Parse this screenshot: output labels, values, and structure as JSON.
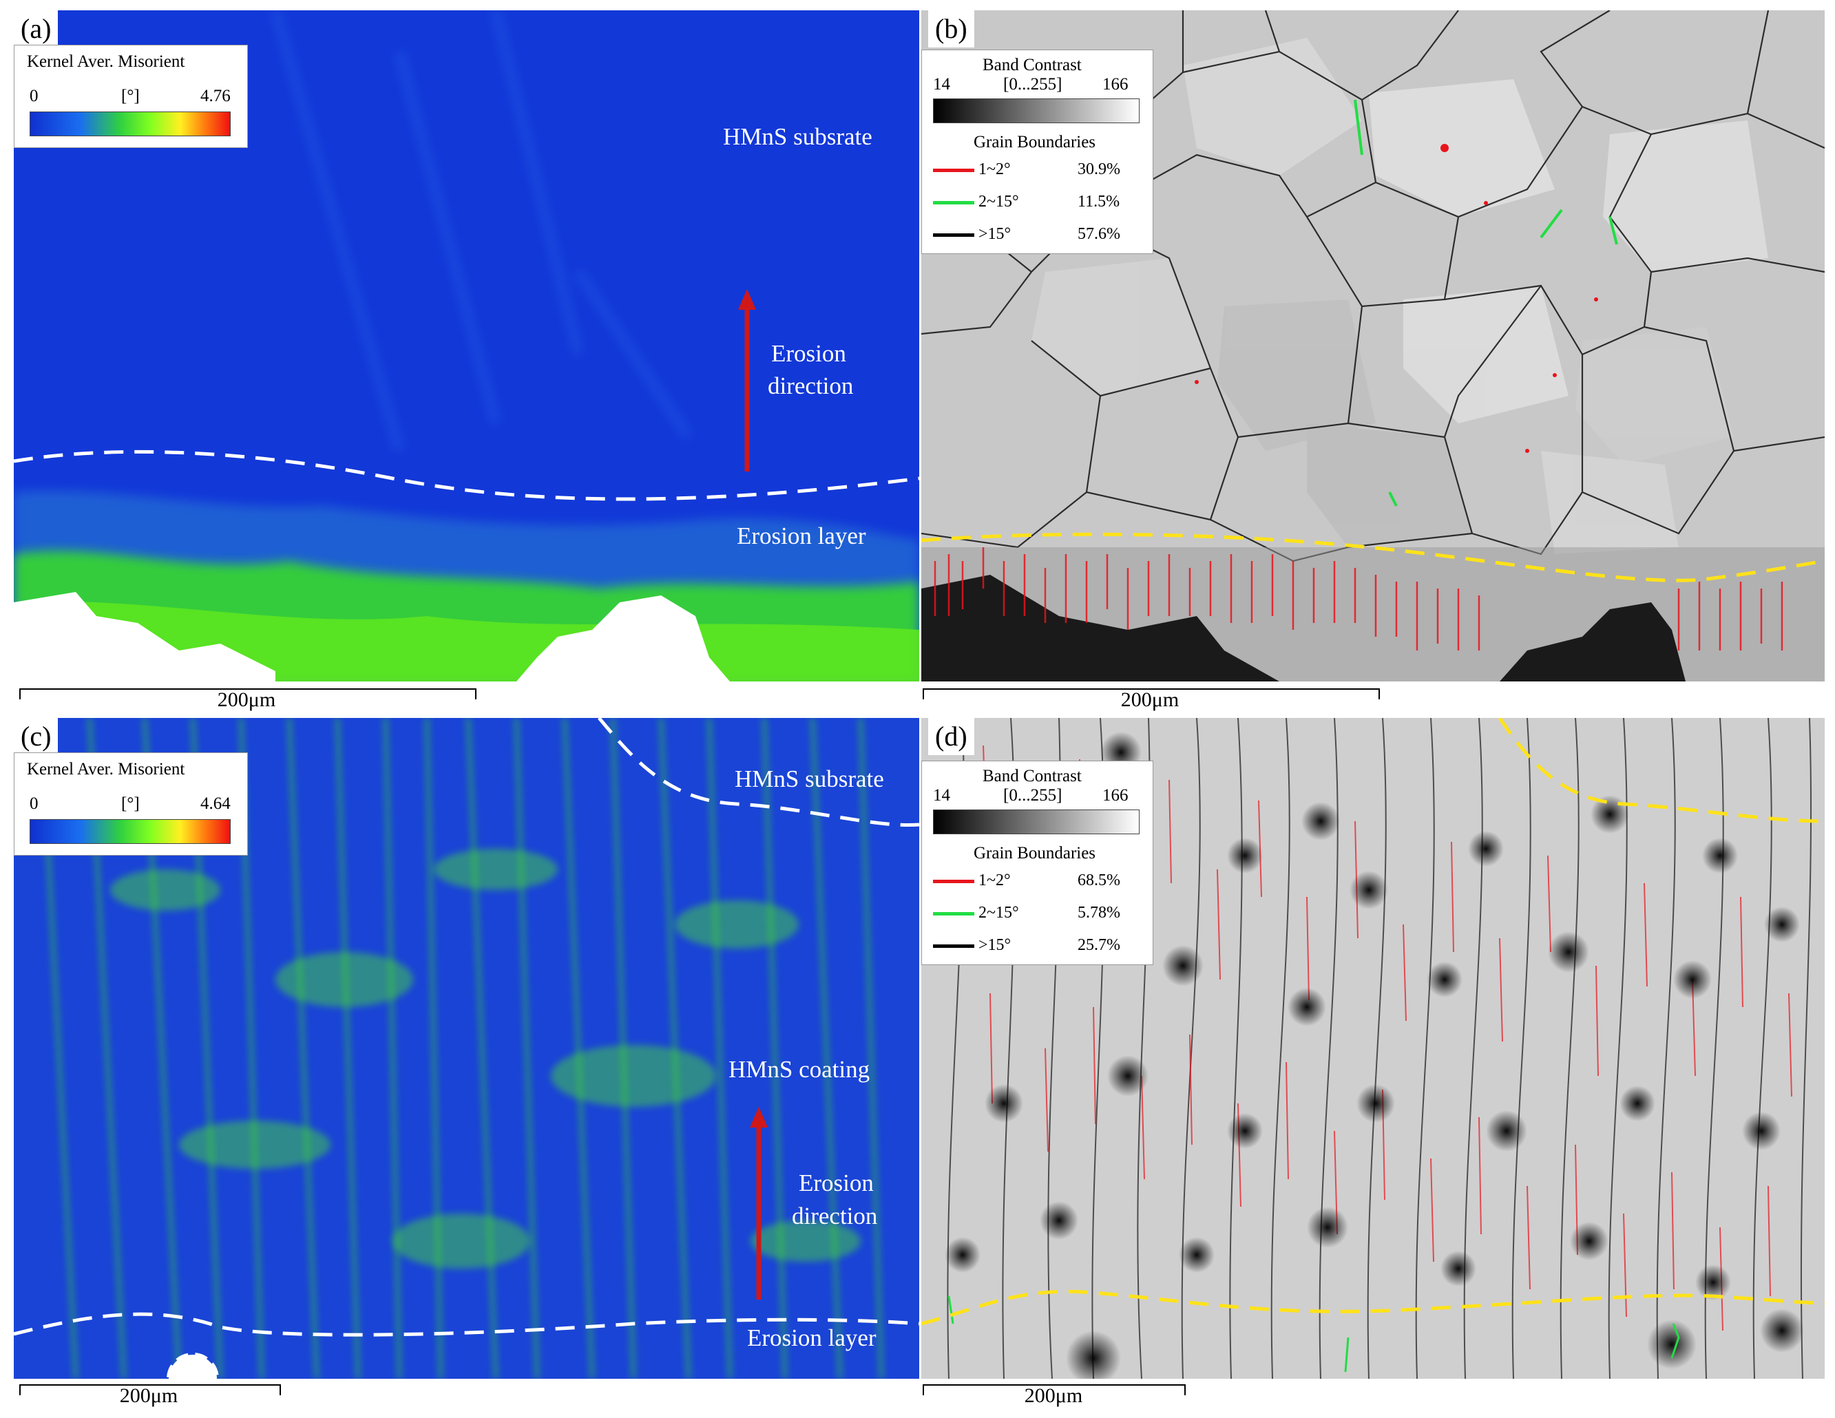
{
  "panels": {
    "a": {
      "letter": "(a)",
      "legend_title": "Kernel Aver. Misorient",
      "min": "0",
      "unit": "[°]",
      "max": "4.76",
      "label_substrate": "HMnS subsrate",
      "label_direction_1": "Erosion",
      "label_direction_2": "direction",
      "label_layer": "Erosion layer",
      "scale": "200μm"
    },
    "b": {
      "letter": "(b)",
      "band_title": "Band Contrast",
      "band_min": "14",
      "band_range": "[0...255]",
      "band_max": "166",
      "gb_title": "Grain Boundaries",
      "gb": [
        {
          "range": "1~2°",
          "pct": "30.9%",
          "color": "#e8141c"
        },
        {
          "range": "2~15°",
          "pct": "11.5%",
          "color": "#22dd44"
        },
        {
          "range": ">15°",
          "pct": "57.6%",
          "color": "#000000"
        }
      ],
      "scale": "200μm"
    },
    "c": {
      "letter": "(c)",
      "legend_title": "Kernel Aver. Misorient",
      "min": "0",
      "unit": "[°]",
      "max": "4.64",
      "label_substrate": "HMnS subsrate",
      "label_coating": "HMnS coating",
      "label_direction_1": "Erosion",
      "label_direction_2": "direction",
      "label_layer": "Erosion layer",
      "scale": "200μm"
    },
    "d": {
      "letter": "(d)",
      "band_title": "Band Contrast",
      "band_min": "14",
      "band_range": "[0...255]",
      "band_max": "166",
      "gb_title": "Grain Boundaries",
      "gb": [
        {
          "range": "1~2°",
          "pct": "68.5%",
          "color": "#e8141c"
        },
        {
          "range": "2~15°",
          "pct": "5.78%",
          "color": "#22dd44"
        },
        {
          "range": ">15°",
          "pct": "25.7%",
          "color": "#000000"
        }
      ],
      "scale": "200μm"
    }
  },
  "colors": {
    "map_blue": "#1238d8",
    "map_green": "#38e020",
    "arrow_red": "#d01818",
    "boundary_yellow": "#ffe21a"
  }
}
